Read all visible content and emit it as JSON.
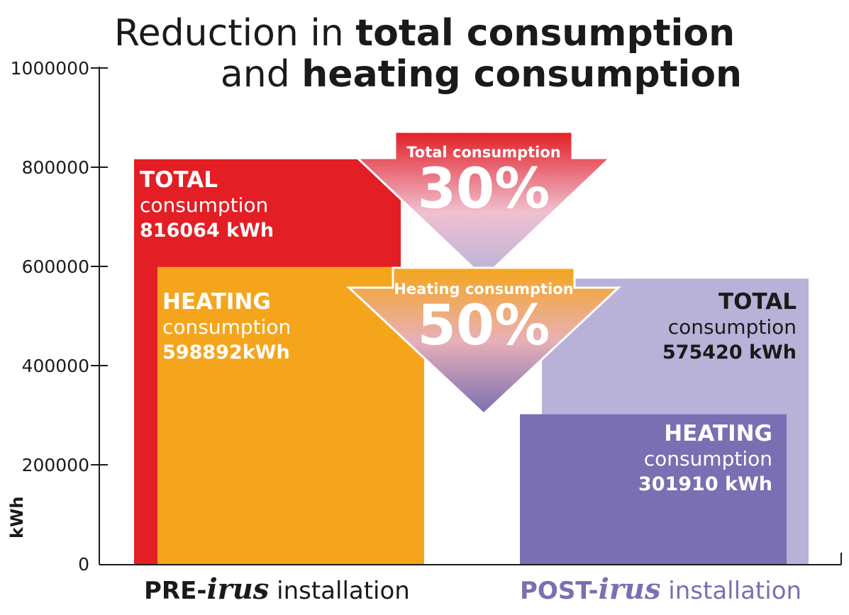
{
  "title": {
    "pre": "Reduction in ",
    "bold1": "total consumption",
    "line2_pre": "and ",
    "bold2": "heating consumption"
  },
  "colors": {
    "pre_total": "#e31e25",
    "pre_heating": "#f5a51c",
    "post_total": "#b8b2d8",
    "post_heating": "#7a6fb2"
  },
  "chart_data": {
    "type": "bar",
    "ylabel": "kWh",
    "ylim": [
      0,
      1000000
    ],
    "yticks": [
      "0",
      "200000",
      "400000",
      "600000",
      "800000",
      "1000000"
    ],
    "categories": [
      "PRE-irus installation",
      "POST-irus installation"
    ],
    "series": [
      {
        "name": "TOTAL consumption",
        "values": [
          816064,
          575420
        ]
      },
      {
        "name": "HEATING consumption",
        "values": [
          598892,
          301910
        ]
      }
    ],
    "bars": [
      {
        "key": "pre_total",
        "title": "TOTAL",
        "sub": "consumption",
        "value_text": "816064 kWh",
        "value": 816064
      },
      {
        "key": "pre_heating",
        "title": "HEATING",
        "sub": "consumption",
        "value_text": "598892kWh",
        "value": 598892
      },
      {
        "key": "post_total",
        "title": "TOTAL",
        "sub": "consumption",
        "value_text": "575420 kWh",
        "value": 575420
      },
      {
        "key": "post_heating",
        "title": "HEATING",
        "sub": "consumption",
        "value_text": "301910 kWh",
        "value": 301910
      }
    ],
    "annotations": [
      {
        "label": "Total consumption",
        "pct": "30%"
      },
      {
        "label": "Heating consumption",
        "pct": "50%"
      }
    ],
    "xlabels": [
      {
        "prefix": "PRE-",
        "brand": "irus",
        "suffix": " installation"
      },
      {
        "prefix": "POST-",
        "brand": "irus",
        "suffix": " installation"
      }
    ]
  }
}
